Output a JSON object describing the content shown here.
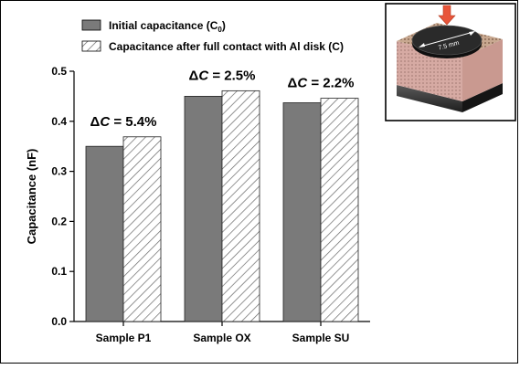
{
  "chart_data": {
    "type": "bar",
    "categories": [
      "Sample P1",
      "Sample OX",
      "Sample SU"
    ],
    "series": [
      {
        "name": "Initial capacitance (C",
        "name_subscript": "0",
        "name_suffix": ")",
        "values": [
          0.35,
          0.45,
          0.437
        ],
        "color": "#7a7a7a",
        "pattern": "solid"
      },
      {
        "name": "Capacitance after full contact with Al disk (C)",
        "values": [
          0.369,
          0.461,
          0.446
        ],
        "color": "#ffffff",
        "pattern": "hatched"
      }
    ],
    "ylabel": "Capacitance (nF)",
    "xlabel": "",
    "ylim": [
      0.0,
      0.5
    ],
    "yticks": [
      0.0,
      0.1,
      0.2,
      0.3,
      0.4,
      0.5
    ],
    "ytick_labels": [
      "0.0",
      "0.1",
      "0.2",
      "0.3",
      "0.4",
      "0.5"
    ],
    "legend_position": "top-left",
    "grid": false,
    "annotations": [
      {
        "category": "Sample P1",
        "prefix": "Δ",
        "variable": "C",
        "text": " = 5.4%"
      },
      {
        "category": "Sample OX",
        "prefix": "Δ",
        "variable": "C",
        "text": " = 2.5%"
      },
      {
        "category": "Sample SU",
        "prefix": "Δ",
        "variable": "C",
        "text": " = 2.2%"
      }
    ],
    "inset": {
      "dimension_label": "7.5 mm",
      "arrow_color": "#e8553a"
    }
  }
}
